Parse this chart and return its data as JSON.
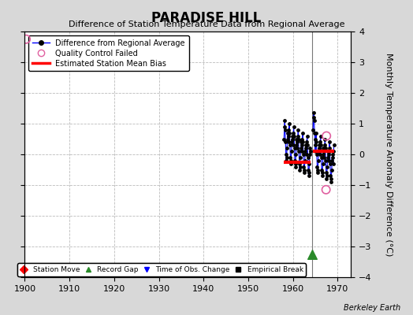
{
  "title": "PARADISE HILL",
  "subtitle": "Difference of Station Temperature Data from Regional Average",
  "ylabel": "Monthly Temperature Anomaly Difference (°C)",
  "xlim": [
    1900,
    1973
  ],
  "ylim": [
    -4,
    4
  ],
  "xticks": [
    1900,
    1910,
    1920,
    1930,
    1940,
    1950,
    1960,
    1970
  ],
  "yticks": [
    -4,
    -3,
    -2,
    -1,
    0,
    1,
    2,
    3,
    4
  ],
  "background_color": "#d8d8d8",
  "plot_bg_color": "#ffffff",
  "grid_color": "#bbbbbb",
  "watermark": "Berkeley Earth",
  "seg1_x": [
    1958.0,
    1958.08,
    1958.17,
    1958.25,
    1958.33,
    1958.42,
    1958.5,
    1958.58,
    1958.67,
    1958.75,
    1958.83,
    1958.92,
    1959.0,
    1959.08,
    1959.17,
    1959.25,
    1959.33,
    1959.42,
    1959.5,
    1959.58,
    1959.67,
    1959.75,
    1959.83,
    1959.92,
    1960.0,
    1960.08,
    1960.17,
    1960.25,
    1960.33,
    1960.42,
    1960.5,
    1960.58,
    1960.67,
    1960.75,
    1960.83,
    1960.92,
    1961.0,
    1961.08,
    1961.17,
    1961.25,
    1961.33,
    1961.42,
    1961.5,
    1961.58,
    1961.67,
    1961.75,
    1961.83,
    1961.92,
    1962.0,
    1962.08,
    1962.17,
    1962.25,
    1962.33,
    1962.42,
    1962.5,
    1962.58,
    1962.67,
    1962.75,
    1962.83,
    1962.92,
    1963.0,
    1963.08,
    1963.17,
    1963.25,
    1963.33,
    1963.42,
    1963.5,
    1963.58,
    1963.67,
    1963.75,
    1963.83,
    1963.92
  ],
  "seg1_y": [
    0.5,
    0.9,
    1.1,
    0.8,
    0.4,
    0.0,
    -0.2,
    -0.1,
    0.2,
    0.5,
    0.7,
    0.6,
    0.4,
    0.8,
    1.0,
    0.7,
    0.3,
    -0.1,
    -0.3,
    -0.2,
    0.1,
    0.4,
    0.6,
    0.5,
    0.3,
    0.7,
    0.9,
    0.6,
    0.2,
    -0.2,
    -0.4,
    -0.3,
    0.0,
    0.3,
    0.5,
    0.4,
    0.2,
    0.6,
    0.8,
    0.5,
    0.1,
    -0.3,
    -0.5,
    -0.4,
    -0.1,
    0.2,
    0.4,
    0.3,
    0.1,
    0.5,
    0.7,
    0.4,
    0.0,
    -0.4,
    -0.6,
    -0.5,
    -0.2,
    0.1,
    0.3,
    0.2,
    0.0,
    0.4,
    0.6,
    0.3,
    -0.1,
    -0.5,
    -0.7,
    -0.6,
    -0.3,
    0.0,
    0.2,
    0.1
  ],
  "seg1_bias_y": -0.25,
  "seg1_bias_x0": 1958.0,
  "seg1_bias_x1": 1964.0,
  "seg2_x": [
    1964.5,
    1964.58,
    1964.67,
    1964.75,
    1964.83,
    1964.92,
    1965.0,
    1965.08,
    1965.17,
    1965.25,
    1965.33,
    1965.42,
    1965.5,
    1965.58,
    1965.67,
    1965.75,
    1965.83,
    1965.92,
    1966.0,
    1966.08,
    1966.17,
    1966.25,
    1966.33,
    1966.42,
    1966.5,
    1966.58,
    1966.67,
    1966.75,
    1966.83,
    1966.92,
    1967.0,
    1967.08,
    1967.17,
    1967.25,
    1967.33,
    1967.42,
    1967.5,
    1967.58,
    1967.67,
    1967.75,
    1967.83,
    1967.92,
    1968.0,
    1968.08,
    1968.17,
    1968.25,
    1968.33,
    1968.42,
    1968.5,
    1968.58,
    1968.67,
    1968.75,
    1968.83,
    1968.92,
    1969.0,
    1969.08,
    1969.17
  ],
  "seg2_y": [
    0.8,
    1.2,
    1.35,
    1.1,
    0.7,
    0.3,
    0.1,
    0.5,
    0.7,
    0.4,
    0.0,
    -0.4,
    -0.6,
    -0.5,
    -0.2,
    0.1,
    0.3,
    0.2,
    0.0,
    0.4,
    0.6,
    0.3,
    -0.1,
    -0.5,
    -0.7,
    -0.6,
    -0.3,
    0.0,
    0.2,
    0.1,
    -0.1,
    0.3,
    0.5,
    0.2,
    -0.2,
    -0.6,
    -0.8,
    -0.7,
    -0.4,
    -0.1,
    0.1,
    0.0,
    -0.2,
    0.2,
    0.4,
    0.1,
    -0.3,
    -0.7,
    -0.9,
    -0.8,
    -0.5,
    -0.2,
    0.0,
    -0.1,
    -0.3,
    0.1,
    0.3
  ],
  "seg2_bias_y": 0.1,
  "seg2_bias_x0": 1964.5,
  "seg2_bias_x1": 1969.2,
  "qc_fail_points": [
    [
      1900.3,
      3.75
    ],
    [
      1967.4,
      -1.15
    ],
    [
      1967.5,
      0.6
    ]
  ],
  "record_gap_x": 1964.25,
  "record_gap_y": -3.25,
  "vertical_line_x": 1964.35,
  "title_fontsize": 12,
  "subtitle_fontsize": 8,
  "tick_fontsize": 8,
  "ylabel_fontsize": 8
}
